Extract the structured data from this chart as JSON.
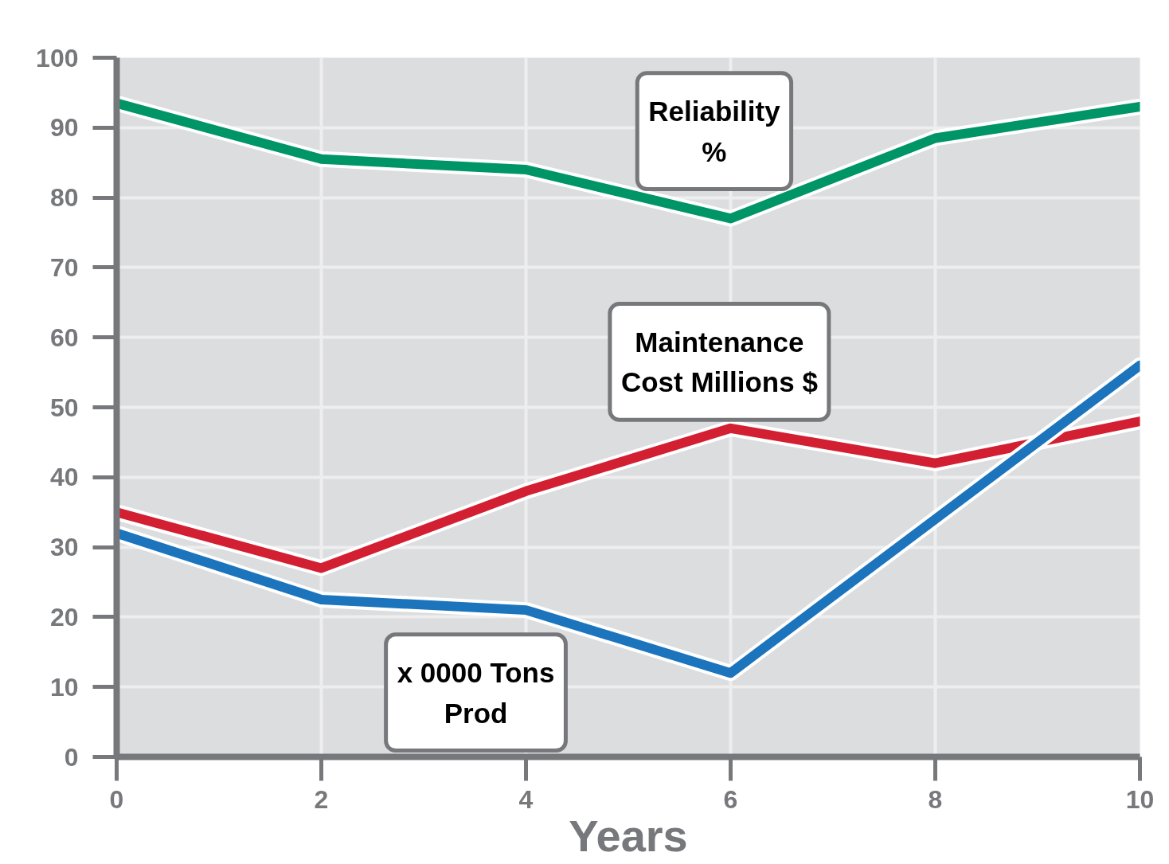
{
  "chart_data": {
    "type": "line",
    "xlabel": "Years",
    "x": [
      0,
      2,
      4,
      6,
      8,
      10
    ],
    "xlim": [
      0,
      10
    ],
    "xticks": [
      0,
      2,
      4,
      6,
      8,
      10
    ],
    "ylim": [
      0,
      100
    ],
    "yticks": [
      0,
      10,
      20,
      30,
      40,
      50,
      60,
      70,
      80,
      90,
      100
    ],
    "grid": true,
    "line_style": "solid",
    "series": [
      {
        "name": "Reliability\n%",
        "color": "#009566",
        "values": [
          93.5,
          85.5,
          84,
          77,
          88.5,
          93
        ]
      },
      {
        "name": "Maintenance\nCost Millions $",
        "color": "#d21f32",
        "values": [
          35,
          27,
          38,
          47,
          42,
          48
        ]
      },
      {
        "name": "x 0000 Tons\nProd",
        "color": "#1b74bc",
        "values": [
          32,
          22.5,
          21,
          12,
          34,
          56
        ]
      }
    ]
  }
}
